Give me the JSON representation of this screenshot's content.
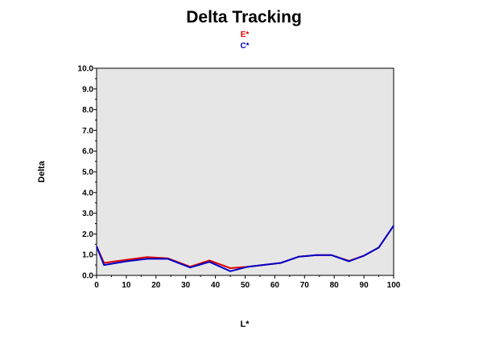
{
  "chart_data": {
    "type": "line",
    "title": "Delta Tracking",
    "xlabel": "L*",
    "ylabel": "Delta",
    "xlim": [
      0,
      100
    ],
    "ylim": [
      0,
      10
    ],
    "x_ticks": [
      "0",
      "10",
      "20",
      "30",
      "40",
      "50",
      "60",
      "70",
      "80",
      "90",
      "100"
    ],
    "y_ticks": [
      "0.0",
      "1.0",
      "2.0",
      "3.0",
      "4.0",
      "5.0",
      "6.0",
      "7.0",
      "8.0",
      "9.0",
      "10.0"
    ],
    "plot_background": "#e6e6e6",
    "grid": false,
    "legend_position": "top-center",
    "series": [
      {
        "name": "E*",
        "color": "#dd0000",
        "x": [
          0,
          2.5,
          10,
          17,
          24,
          31.5,
          38,
          45,
          51,
          62,
          68,
          74,
          79,
          85,
          90,
          95,
          100
        ],
        "y": [
          1.4,
          0.6,
          0.75,
          0.88,
          0.82,
          0.42,
          0.72,
          0.35,
          0.42,
          0.6,
          0.9,
          0.98,
          0.98,
          0.7,
          0.95,
          1.35,
          2.4
        ]
      },
      {
        "name": "C*",
        "color": "#0000cc",
        "x": [
          0,
          2.5,
          10,
          17,
          24,
          31.5,
          38,
          45,
          51,
          62,
          68,
          74,
          79,
          85,
          90,
          95,
          100
        ],
        "y": [
          1.4,
          0.5,
          0.68,
          0.8,
          0.8,
          0.38,
          0.65,
          0.2,
          0.42,
          0.6,
          0.9,
          0.98,
          0.98,
          0.68,
          0.95,
          1.35,
          2.4
        ]
      }
    ]
  }
}
